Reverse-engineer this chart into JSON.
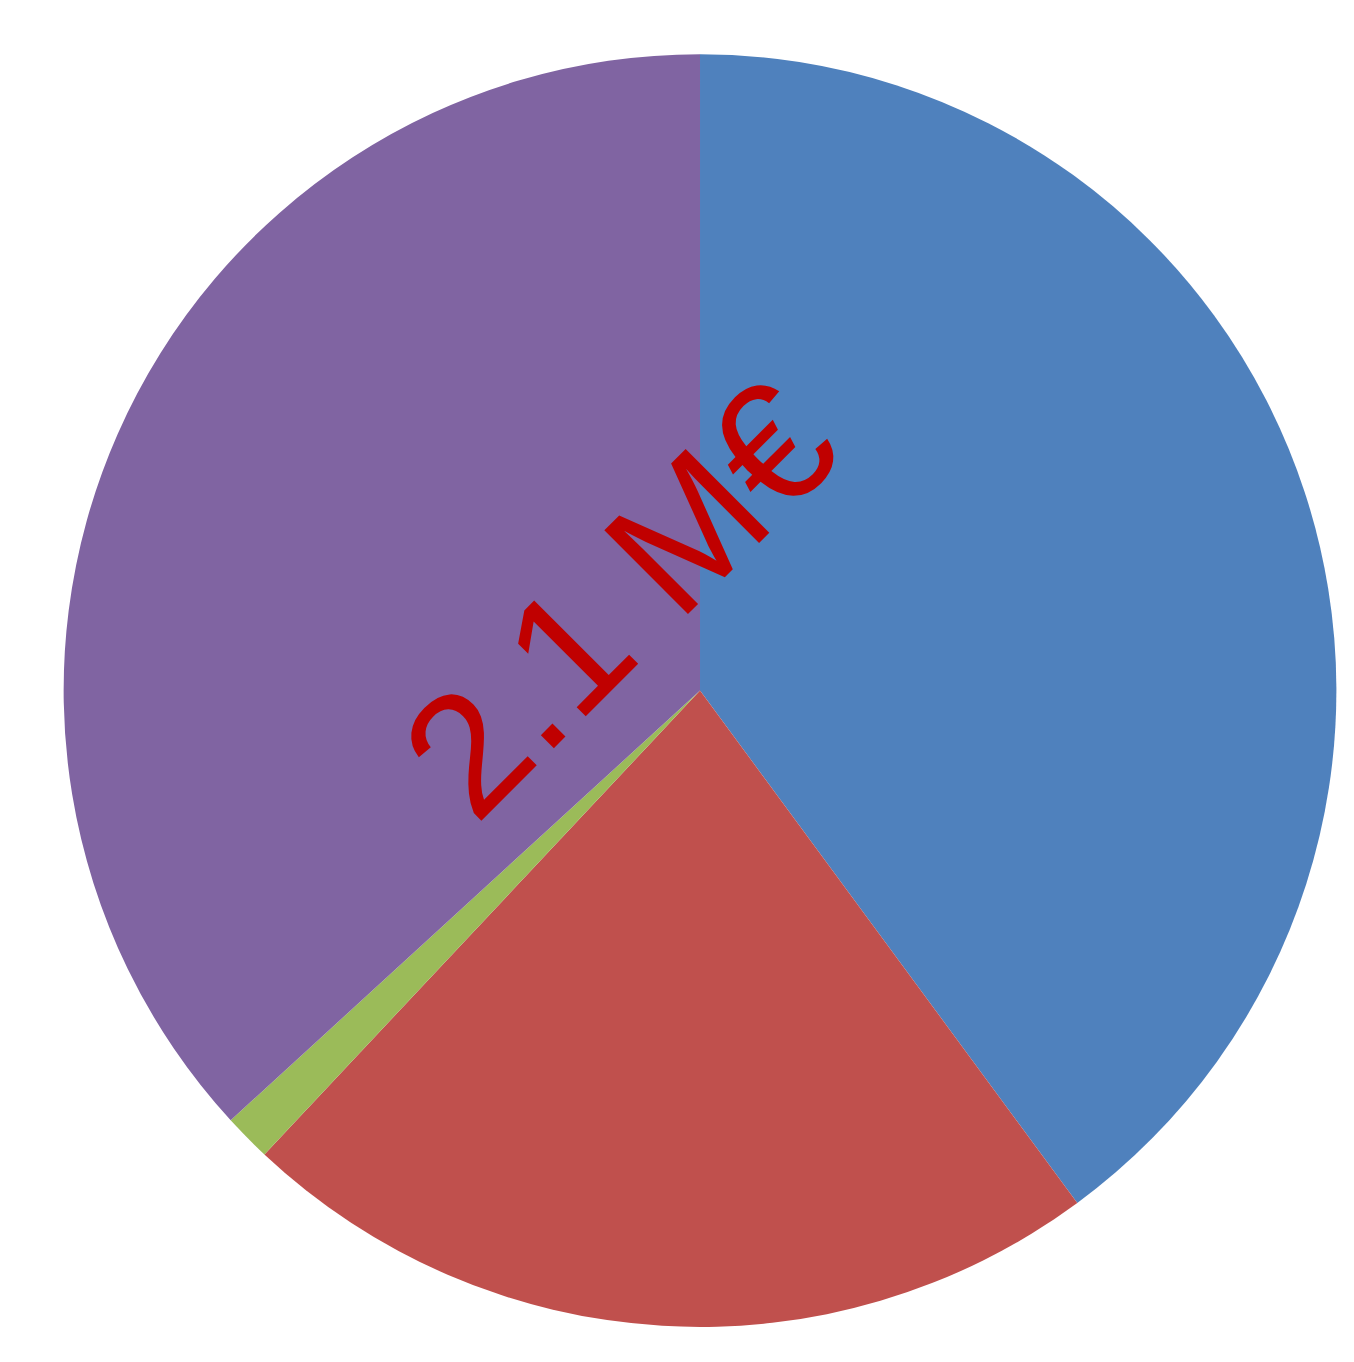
{
  "chart_data": {
    "type": "pie",
    "categories": [
      null,
      null,
      null,
      null
    ],
    "values": [
      39.9,
      22.1,
      1.2,
      36.8
    ],
    "colors": [
      "#4f81bd",
      "#c0504d",
      "#9bbb59",
      "#8064a2"
    ],
    "annotations": [
      "2.1 M€"
    ]
  }
}
